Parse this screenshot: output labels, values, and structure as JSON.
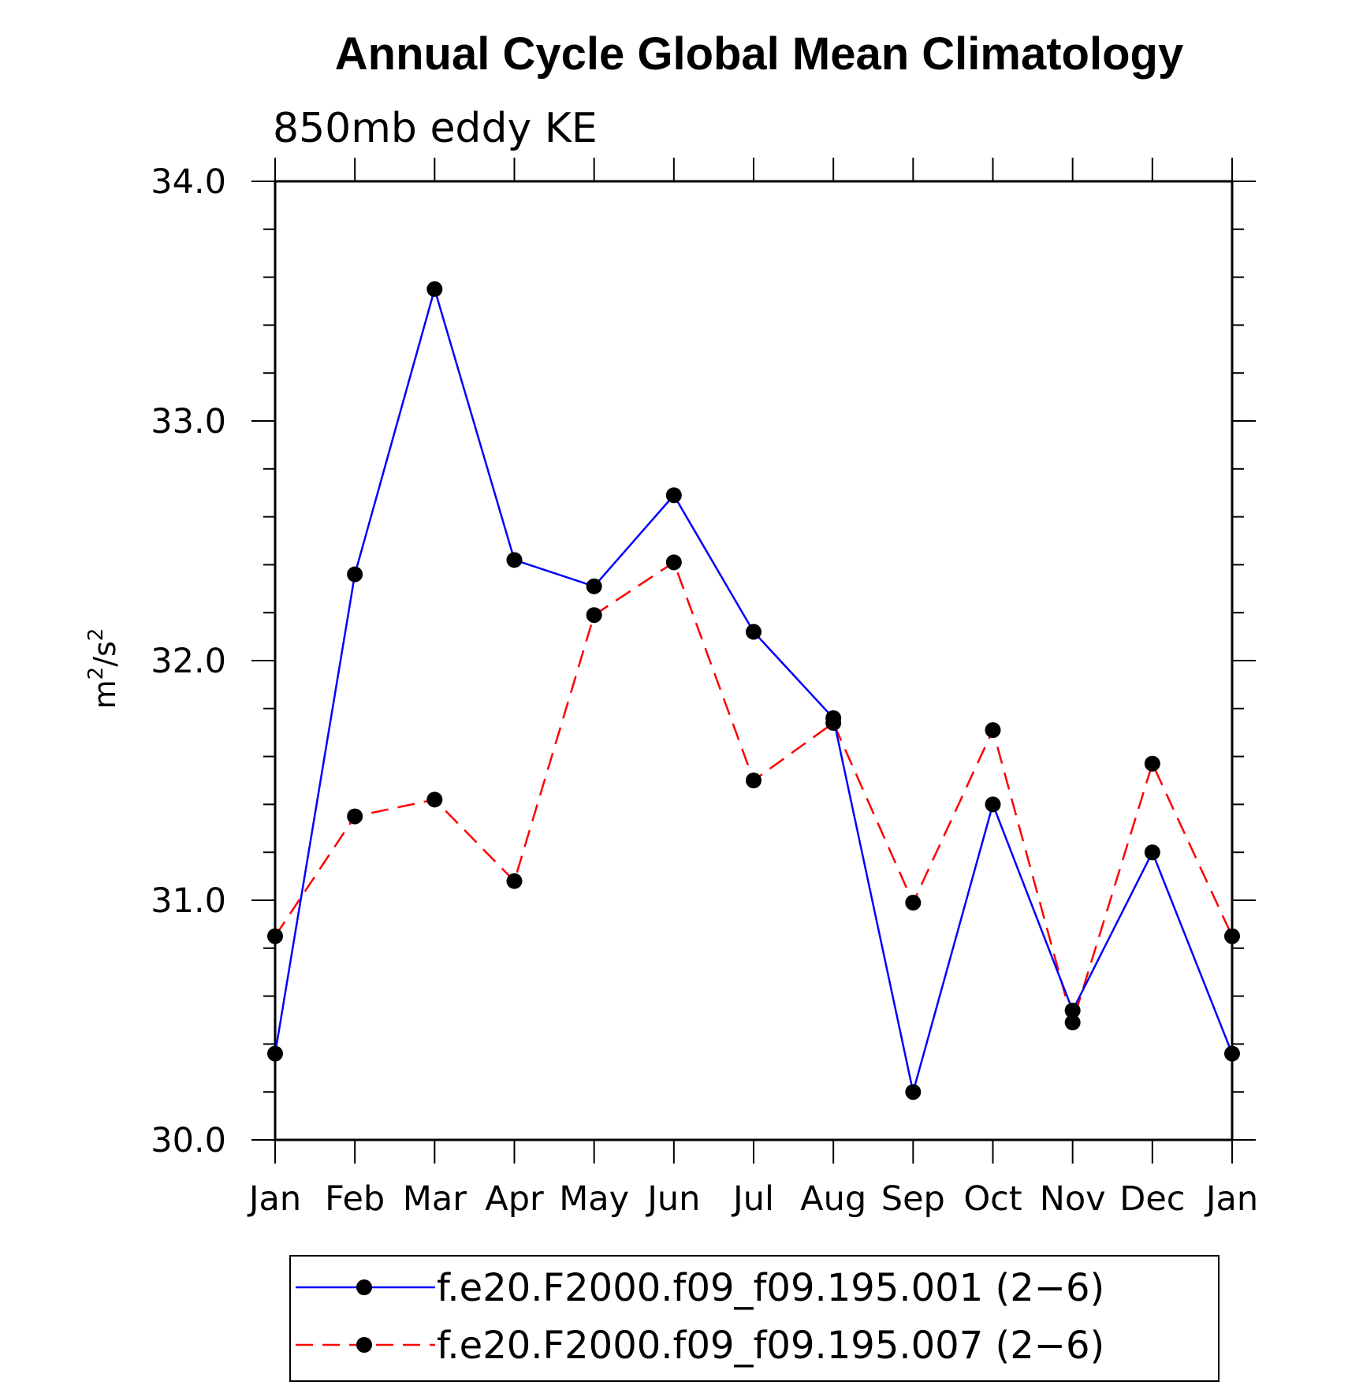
{
  "chart_data": {
    "type": "line",
    "title": "Annual Cycle Global Mean Climatology",
    "subtitle": "850mb eddy KE",
    "xlabel": "",
    "ylabel": "m²/s²",
    "ylabel_base": "m",
    "ylabel_exp": "2",
    "ylabel_sep": "/s",
    "ylabel_exp2": "2",
    "categories": [
      "Jan",
      "Feb",
      "Mar",
      "Apr",
      "May",
      "Jun",
      "Jul",
      "Aug",
      "Sep",
      "Oct",
      "Nov",
      "Dec",
      "Jan"
    ],
    "ylim": [
      30.0,
      34.0
    ],
    "yticks": [
      "30.0",
      "31.0",
      "32.0",
      "33.0",
      "34.0"
    ],
    "grid": false,
    "legend_position": "bottom",
    "series": [
      {
        "name": "f.e20.F2000.f09_f09.195.001 (2−6)",
        "color": "#0000ff",
        "style": "solid",
        "values": [
          30.36,
          32.36,
          33.55,
          32.42,
          32.31,
          32.69,
          32.12,
          31.76,
          30.2,
          31.4,
          30.54,
          31.2,
          30.36
        ]
      },
      {
        "name": "f.e20.F2000.f09_f09.195.007 (2−6)",
        "color": "#ff0000",
        "style": "dashed",
        "values": [
          30.85,
          31.35,
          31.42,
          31.08,
          32.19,
          32.41,
          31.5,
          31.74,
          30.99,
          31.71,
          30.49,
          31.57,
          30.85
        ]
      }
    ],
    "marker_color": "#000000"
  }
}
